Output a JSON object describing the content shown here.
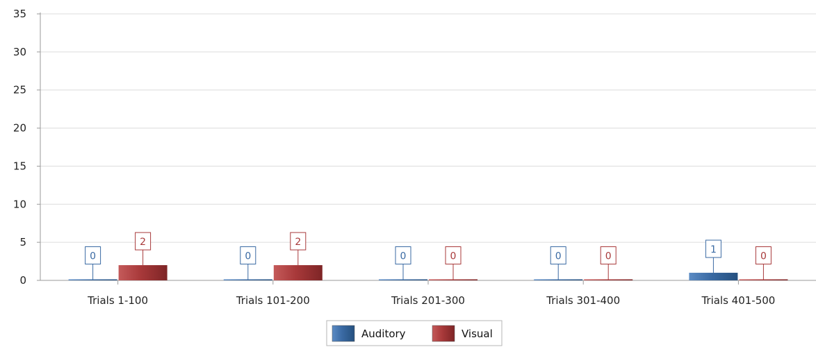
{
  "chart_data": {
    "type": "bar",
    "title": "",
    "xlabel": "",
    "ylabel": "",
    "categories": [
      "Trials 1-100",
      "Trials 101-200",
      "Trials 201-300",
      "Trials 301-400",
      "Trials 401-500"
    ],
    "series": [
      {
        "name": "Auditory",
        "values": [
          0,
          0,
          0,
          0,
          1
        ],
        "color": "#3a6aa3"
      },
      {
        "name": "Visual",
        "values": [
          2,
          2,
          0,
          0,
          0
        ],
        "color": "#a8393a"
      }
    ],
    "ylim": [
      0,
      35
    ],
    "yticks": [
      "0",
      "5",
      "10",
      "15",
      "20",
      "25",
      "30",
      "35"
    ],
    "grid": true,
    "data_labels": true,
    "legend_position": "bottom-center"
  }
}
